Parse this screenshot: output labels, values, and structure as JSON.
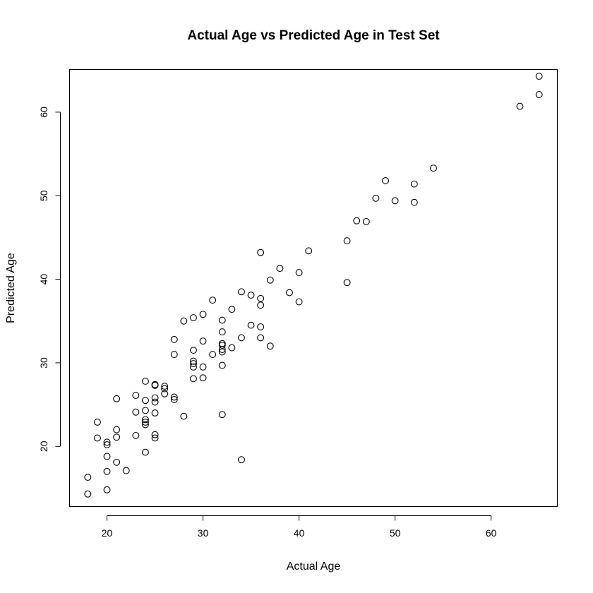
{
  "chart_data": {
    "type": "scatter",
    "title": "Actual Age vs Predicted Age in Test Set",
    "xlabel": "Actual Age",
    "ylabel": "Predicted Age",
    "xlim": [
      16.1,
      66.9
    ],
    "ylim": [
      12.8,
      65.1
    ],
    "xticks": [
      20,
      30,
      40,
      50,
      60
    ],
    "yticks": [
      20,
      30,
      40,
      50,
      60
    ],
    "grid": false,
    "marker": "open-circle",
    "points": [
      [
        18,
        16.3
      ],
      [
        18,
        14.3
      ],
      [
        19,
        22.9
      ],
      [
        19,
        21.0
      ],
      [
        20,
        20.5
      ],
      [
        20,
        20.2
      ],
      [
        20,
        18.8
      ],
      [
        20,
        17.0
      ],
      [
        20,
        14.8
      ],
      [
        21,
        25.7
      ],
      [
        21,
        22.0
      ],
      [
        21,
        21.1
      ],
      [
        21,
        18.1
      ],
      [
        22,
        17.1
      ],
      [
        23,
        26.1
      ],
      [
        23,
        24.1
      ],
      [
        23,
        21.3
      ],
      [
        24,
        27.8
      ],
      [
        24,
        25.5
      ],
      [
        24,
        24.3
      ],
      [
        24,
        23.2
      ],
      [
        24,
        22.9
      ],
      [
        24,
        22.6
      ],
      [
        24,
        19.3
      ],
      [
        25,
        27.4
      ],
      [
        25,
        27.3
      ],
      [
        25,
        25.8
      ],
      [
        25,
        25.3
      ],
      [
        25,
        24.0
      ],
      [
        25,
        21.4
      ],
      [
        25,
        21.0
      ],
      [
        26,
        27.2
      ],
      [
        26,
        26.9
      ],
      [
        26,
        26.3
      ],
      [
        27,
        32.8
      ],
      [
        27,
        31.0
      ],
      [
        27,
        25.9
      ],
      [
        27,
        25.6
      ],
      [
        28,
        35.0
      ],
      [
        28,
        23.6
      ],
      [
        29,
        35.4
      ],
      [
        29,
        31.5
      ],
      [
        29,
        30.2
      ],
      [
        29,
        29.9
      ],
      [
        29,
        29.5
      ],
      [
        29,
        28.1
      ],
      [
        30,
        35.8
      ],
      [
        30,
        32.6
      ],
      [
        30,
        29.5
      ],
      [
        30,
        28.2
      ],
      [
        31,
        37.5
      ],
      [
        31,
        31.0
      ],
      [
        32,
        35.1
      ],
      [
        32,
        33.7
      ],
      [
        32,
        32.3
      ],
      [
        32,
        32.1
      ],
      [
        32,
        31.6
      ],
      [
        32,
        31.3
      ],
      [
        32,
        29.7
      ],
      [
        32,
        23.8
      ],
      [
        33,
        36.4
      ],
      [
        33,
        31.8
      ],
      [
        34,
        38.5
      ],
      [
        34,
        33.0
      ],
      [
        34,
        18.4
      ],
      [
        35,
        38.1
      ],
      [
        35,
        34.5
      ],
      [
        36,
        43.2
      ],
      [
        36,
        37.7
      ],
      [
        36,
        36.9
      ],
      [
        36,
        34.3
      ],
      [
        36,
        33.0
      ],
      [
        37,
        39.9
      ],
      [
        37,
        32.0
      ],
      [
        38,
        41.3
      ],
      [
        39,
        38.4
      ],
      [
        40,
        40.8
      ],
      [
        40,
        37.3
      ],
      [
        41,
        43.4
      ],
      [
        45,
        44.6
      ],
      [
        45,
        39.6
      ],
      [
        46,
        47.0
      ],
      [
        47,
        46.9
      ],
      [
        48,
        49.7
      ],
      [
        49,
        51.8
      ],
      [
        50,
        49.4
      ],
      [
        52,
        51.4
      ],
      [
        52,
        49.2
      ],
      [
        54,
        53.3
      ],
      [
        63,
        60.7
      ],
      [
        65,
        64.3
      ],
      [
        65,
        62.1
      ]
    ]
  }
}
